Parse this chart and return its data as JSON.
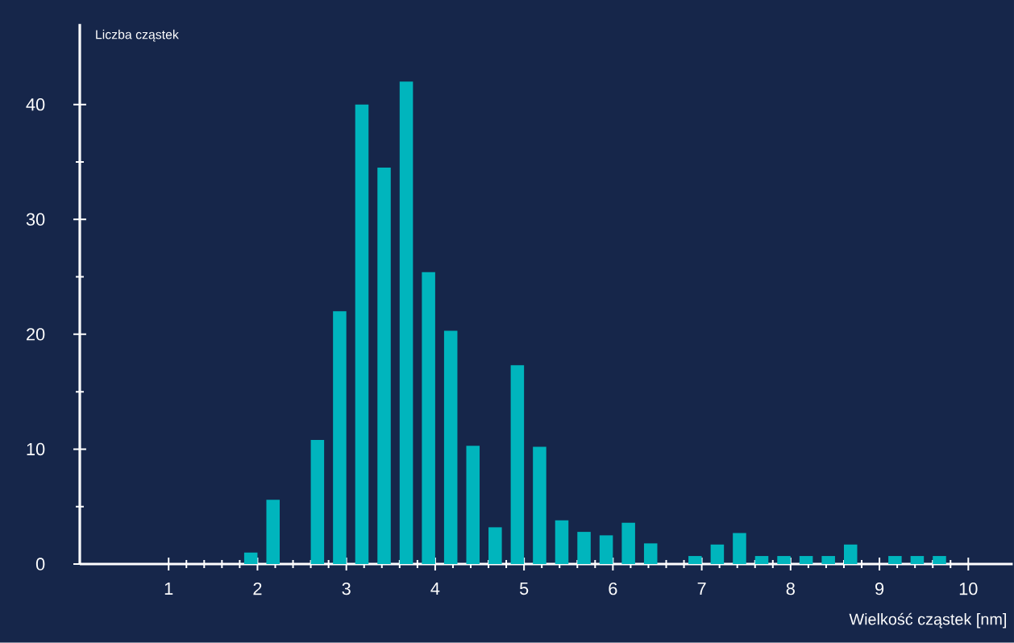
{
  "chart_data": {
    "type": "histogram",
    "xlabel": "Wielkość cząstek [nm]",
    "ylabel": "Liczba cząstek",
    "bins": [
      1.8,
      2.05,
      2.3,
      2.55,
      2.8,
      3.05,
      3.3,
      3.55,
      3.8,
      4.05,
      4.3,
      4.55,
      4.8,
      5.05,
      5.3,
      5.55,
      5.8,
      6.05,
      6.3,
      6.55,
      6.8,
      7.05,
      7.3,
      7.55,
      7.8,
      8.05,
      8.3,
      8.55,
      8.8,
      9.05,
      9.3,
      9.55,
      9.8
    ],
    "values": [
      1,
      5.6,
      0,
      10.8,
      22,
      40,
      34.5,
      42,
      25.4,
      20.3,
      10.3,
      3.2,
      17.3,
      10.2,
      3.8,
      2.8,
      2.5,
      3.6,
      1.8,
      0,
      0.7,
      1.7,
      2.7,
      0.7,
      0.7,
      0.7,
      0.7,
      1.7,
      0,
      0.7,
      0.7,
      0.7
    ],
    "color": "#00b5bd",
    "xlim": [
      0,
      10.5
    ],
    "ylim": [
      0,
      47
    ],
    "xticks": [
      1,
      2,
      3,
      4,
      5,
      6,
      7,
      8,
      9,
      10
    ],
    "yticks": [
      0,
      10,
      20,
      30,
      40
    ]
  }
}
